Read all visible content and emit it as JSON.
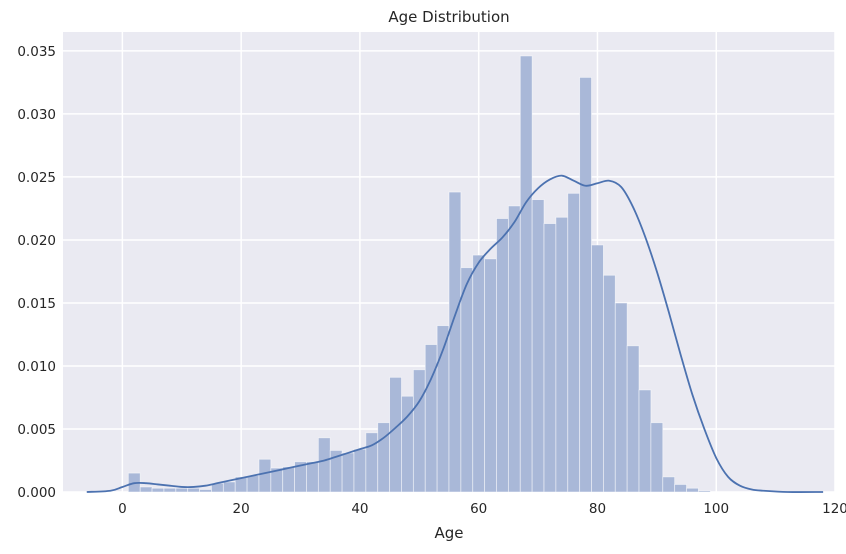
{
  "chart_data": {
    "type": "bar",
    "title": "Age Distribution",
    "xlabel": "Age",
    "ylabel": "",
    "xlim": [
      -10,
      120
    ],
    "ylim": [
      0,
      0.0365
    ],
    "x_ticks": [
      0,
      20,
      40,
      60,
      80,
      100,
      120
    ],
    "y_ticks": [
      "0.000",
      "0.005",
      "0.010",
      "0.015",
      "0.020",
      "0.025",
      "0.030",
      "0.035"
    ],
    "grid": true,
    "colors": {
      "background": "#EAEAF2",
      "grid": "#FFFFFF",
      "bar_fill": "#A9B8D8",
      "kde_line": "#4C72B0"
    },
    "histogram": {
      "bin_start": 1,
      "bin_width": 2,
      "densities": [
        0.0015,
        0.0004,
        0.0003,
        0.0003,
        0.0003,
        0.0003,
        0.0002,
        0.0007,
        0.0008,
        0.0012,
        0.0013,
        0.0026,
        0.0019,
        0.002,
        0.0024,
        0.0024,
        0.0043,
        0.0033,
        0.0031,
        0.0034,
        0.0047,
        0.0055,
        0.0091,
        0.0076,
        0.0097,
        0.0117,
        0.0132,
        0.0238,
        0.0178,
        0.0188,
        0.0185,
        0.0217,
        0.0227,
        0.0346,
        0.0232,
        0.0213,
        0.0218,
        0.0237,
        0.0329,
        0.0196,
        0.0172,
        0.015,
        0.0116,
        0.0081,
        0.0055,
        0.0012,
        0.0006,
        0.0003,
        0.0001
      ]
    },
    "kde": {
      "x": [
        -6,
        -2,
        0,
        2,
        4,
        6,
        8,
        10,
        12,
        14,
        16,
        18,
        20,
        22,
        24,
        26,
        28,
        30,
        32,
        34,
        36,
        38,
        40,
        42,
        44,
        46,
        48,
        50,
        52,
        54,
        56,
        58,
        60,
        62,
        64,
        66,
        68,
        70,
        72,
        74,
        76,
        78,
        80,
        82,
        84,
        86,
        88,
        90,
        92,
        94,
        96,
        98,
        100,
        102,
        104,
        106,
        108,
        112,
        118
      ],
      "y": [
        0.0,
        0.0001,
        0.0004,
        0.0007,
        0.0007,
        0.0006,
        0.0005,
        0.0004,
        0.0004,
        0.0005,
        0.0007,
        0.0009,
        0.0011,
        0.0013,
        0.0015,
        0.0017,
        0.0019,
        0.0021,
        0.0023,
        0.0025,
        0.0028,
        0.0031,
        0.0034,
        0.0037,
        0.0043,
        0.0051,
        0.006,
        0.0072,
        0.009,
        0.0113,
        0.014,
        0.0165,
        0.0182,
        0.0193,
        0.0202,
        0.0214,
        0.023,
        0.0241,
        0.0248,
        0.0251,
        0.0247,
        0.0243,
        0.0245,
        0.0247,
        0.0242,
        0.0226,
        0.0203,
        0.0175,
        0.0143,
        0.0109,
        0.0077,
        0.005,
        0.0027,
        0.0012,
        0.0005,
        0.0002,
        0.0001,
        0.0,
        0.0
      ]
    }
  }
}
